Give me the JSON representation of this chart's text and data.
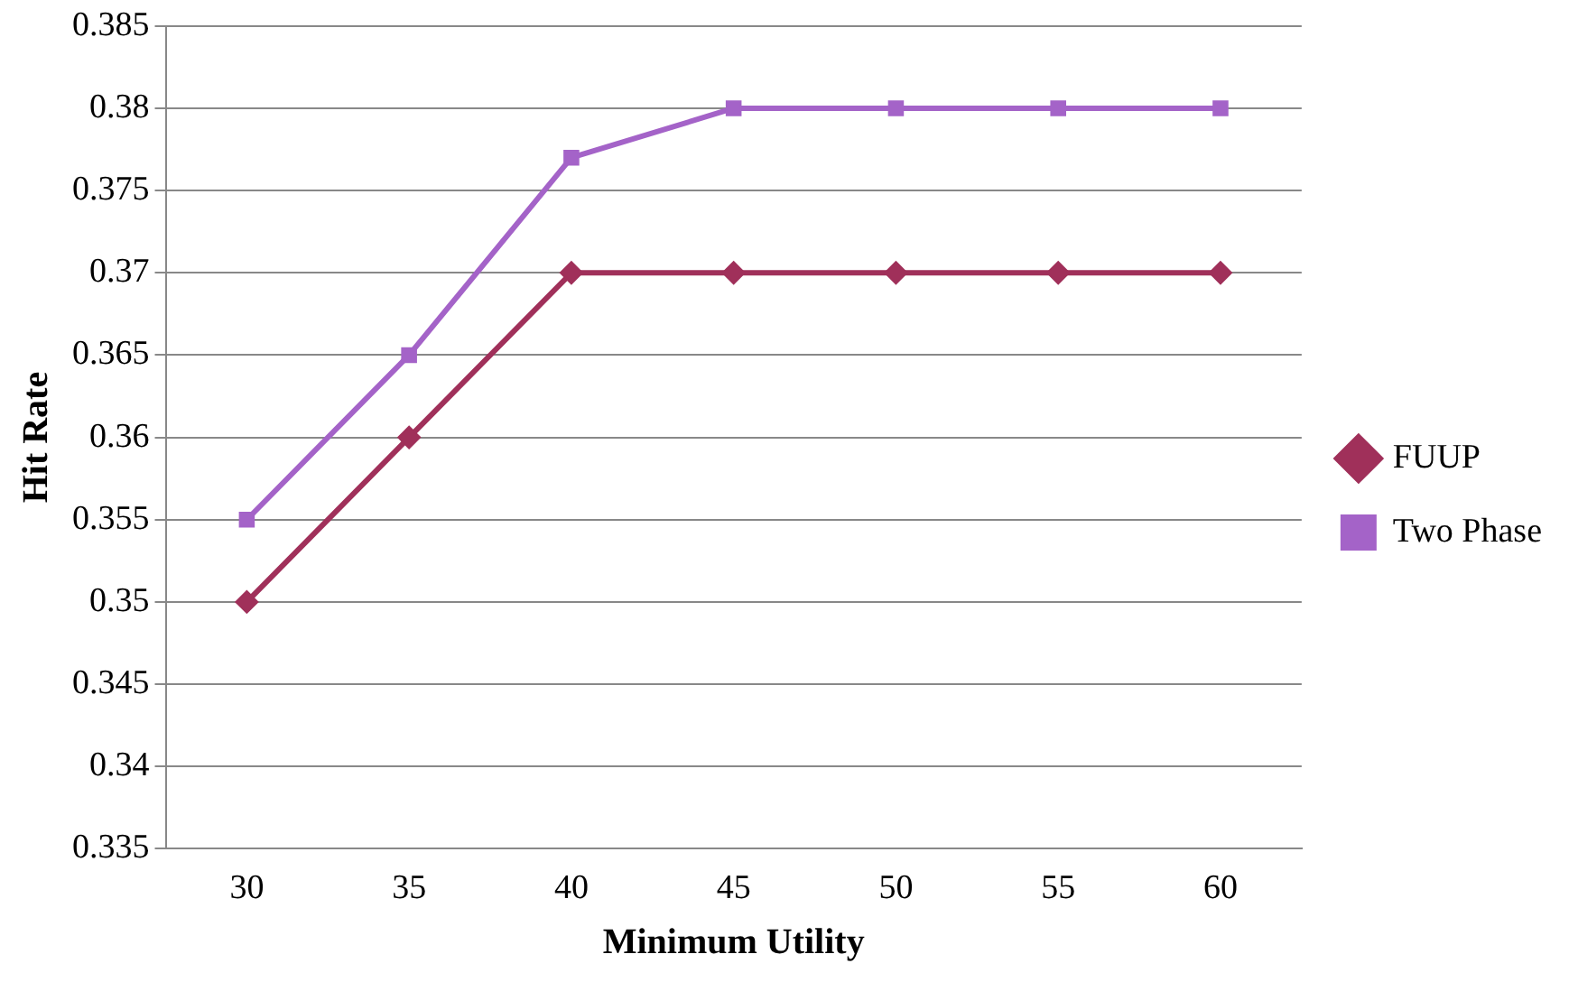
{
  "chart_data": {
    "type": "line",
    "xlabel": "Minimum Utility",
    "ylabel": "Hit Rate",
    "categories": [
      "30",
      "35",
      "40",
      "45",
      "50",
      "55",
      "60"
    ],
    "series": [
      {
        "name": "FUUP",
        "color": "#a0305a",
        "marker": "diamond",
        "values": [
          0.35,
          0.36,
          0.37,
          0.37,
          0.37,
          0.37,
          0.37
        ]
      },
      {
        "name": "Two Phase",
        "color": "#a463c8",
        "marker": "square",
        "values": [
          0.355,
          0.365,
          0.377,
          0.38,
          0.38,
          0.38,
          0.38
        ]
      }
    ],
    "ylim": [
      0.335,
      0.385
    ],
    "yticks": [
      0.335,
      0.34,
      0.345,
      0.35,
      0.355,
      0.36,
      0.365,
      0.37,
      0.375,
      0.38,
      0.385
    ],
    "grid": "y",
    "legend": "right",
    "line_style": "solid"
  }
}
